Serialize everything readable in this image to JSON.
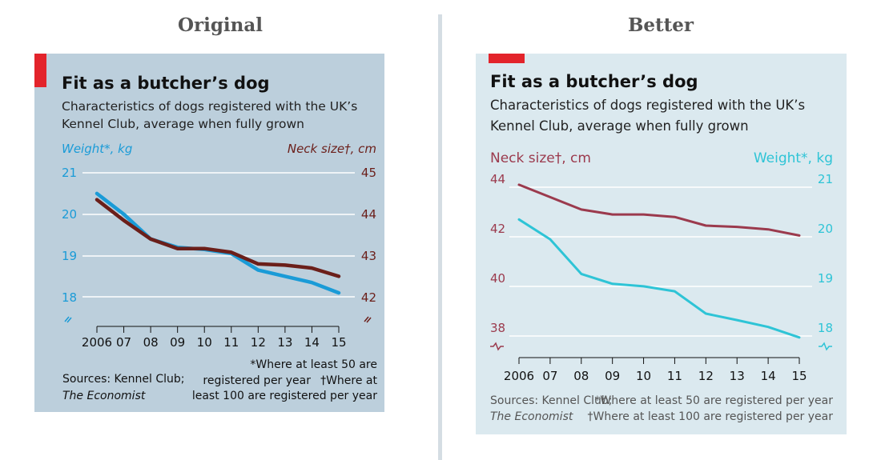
{
  "headings": {
    "left": "Original",
    "right": "Better"
  },
  "chart_data": [
    {
      "type": "line",
      "panel": "Original",
      "title": "Fit as a butcher’s dog",
      "subtitle": [
        "Characteristics of dogs registered with the UK’s",
        "Kennel Club, average when fully grown"
      ],
      "x": [
        2006,
        2007,
        2008,
        2009,
        2010,
        2011,
        2012,
        2013,
        2014,
        2015
      ],
      "x_tick_labels": [
        "2006",
        "07",
        "08",
        "09",
        "10",
        "11",
        "12",
        "13",
        "14",
        "15"
      ],
      "left_axis": {
        "label": "Weight*, kg",
        "ticks": [
          "21",
          "20",
          "19",
          "18"
        ],
        "range": [
          17.6,
          21
        ]
      },
      "right_axis": {
        "label": "Neck size†, cm",
        "ticks": [
          "45",
          "44",
          "43",
          "42"
        ],
        "range": [
          41.6,
          45
        ]
      },
      "series": [
        {
          "name": "Weight*, kg",
          "axis": "left",
          "color": "#1a9bd7",
          "values": [
            20.5,
            20.0,
            19.4,
            19.2,
            19.15,
            19.05,
            18.65,
            18.5,
            18.35,
            18.1
          ]
        },
        {
          "name": "Neck size†, cm",
          "axis": "right",
          "color": "#6b1f1a",
          "values": [
            44.35,
            43.85,
            43.4,
            43.17,
            43.17,
            43.08,
            42.8,
            42.77,
            42.7,
            42.5
          ]
        }
      ],
      "footnotes": {
        "sources_line1": "Sources: Kennel Club;",
        "sources_line2": "The Economist",
        "note1_line1": "*Where at least 50 are",
        "note1_line2": "registered per year",
        "note2_line1": "†Where at",
        "note2_line2": "least 100 are registered per year"
      },
      "colors": {
        "background": "#bccfdc",
        "accent": "#e3242b"
      }
    },
    {
      "type": "line",
      "panel": "Better",
      "title": "Fit as a butcher’s dog",
      "subtitle": [
        "Characteristics of dogs registered with the UK’s",
        "Kennel Club, average when fully grown"
      ],
      "x": [
        2006,
        2007,
        2008,
        2009,
        2010,
        2011,
        2012,
        2013,
        2014,
        2015
      ],
      "x_tick_labels": [
        "2006",
        "07",
        "08",
        "09",
        "10",
        "11",
        "12",
        "13",
        "14",
        "15"
      ],
      "left_axis": {
        "label": "Neck size†, cm",
        "ticks": [
          "44",
          "42",
          "40",
          "38"
        ],
        "range": [
          37.9,
          44
        ]
      },
      "right_axis": {
        "label": "Weight*, kg",
        "ticks": [
          "21",
          "20",
          "19",
          "18"
        ],
        "range": [
          17.95,
          21
        ]
      },
      "series": [
        {
          "name": "Neck size†, cm",
          "axis": "left",
          "color": "#9b3a4d",
          "values": [
            44.1,
            43.6,
            43.1,
            42.9,
            42.9,
            42.8,
            42.45,
            42.4,
            42.3,
            42.05
          ]
        },
        {
          "name": "Weight*, kg",
          "axis": "right",
          "color": "#2ec4d6",
          "values": [
            20.35,
            19.95,
            19.25,
            19.05,
            19.0,
            18.9,
            18.45,
            18.32,
            18.18,
            17.97
          ]
        }
      ],
      "footnotes": {
        "sources_line1": "Sources: Kennel Club;",
        "sources_line2": "The Economist",
        "note1_line1": "*Where at least 50 are registered per year",
        "note1_line2": "",
        "note2_line1": "",
        "note2_line2": "†Where at least 100 are registered per year"
      },
      "colors": {
        "background": "#dbe9ef",
        "accent": "#e3242b"
      }
    }
  ]
}
